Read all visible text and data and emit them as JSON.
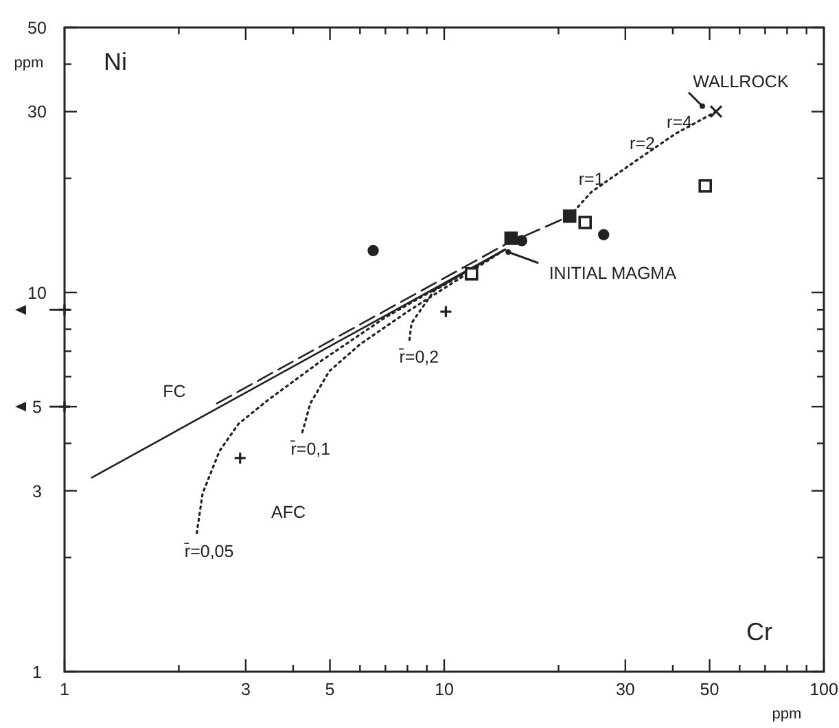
{
  "chart_data": {
    "type": "scatter",
    "xlabel": "ppm",
    "ylabel": "ppm",
    "log": "xy",
    "xlim": [
      1,
      100
    ],
    "ylim": [
      1,
      50
    ],
    "xticks": [
      1,
      {
        "value": 2,
        "label": null
      },
      3,
      {
        "value": 4,
        "label": null
      },
      5,
      {
        "value": 6,
        "label": null
      },
      {
        "value": 7,
        "label": null
      },
      {
        "value": 8,
        "label": null
      },
      {
        "value": 9,
        "label": null
      },
      10,
      {
        "value": 20,
        "label": null
      },
      30,
      {
        "value": 40,
        "label": null
      },
      50,
      {
        "value": 60,
        "label": null
      },
      {
        "value": 70,
        "label": null
      },
      {
        "value": 80,
        "label": null
      },
      {
        "value": 90,
        "label": null
      },
      100
    ],
    "yticks": [
      1,
      {
        "value": 2,
        "label": null
      },
      3,
      {
        "value": 4,
        "label": null
      },
      5,
      {
        "value": 6,
        "label": null
      },
      {
        "value": 7,
        "label": null
      },
      {
        "value": 8,
        "label": null
      },
      {
        "value": 9,
        "label": null
      },
      10,
      {
        "value": 20,
        "label": null
      },
      30,
      {
        "value": 40,
        "label": null
      },
      50
    ],
    "series": [
      {
        "type": "line",
        "color": "#222222",
        "line_style": "solid",
        "marker": "none",
        "x": [
          1.18,
          14.5
        ],
        "values": [
          3.25,
          13
        ]
      },
      {
        "type": "line",
        "color": "#222222",
        "line_style": "dashed",
        "marker": "none",
        "x": [
          2.52,
          14.5,
          21.4
        ],
        "values": [
          5.1,
          13.4,
          15.9
        ]
      },
      {
        "type": "line",
        "color": "#222222",
        "line_style": "dotted",
        "marker": "none",
        "x": [
          21.4,
          24.4,
          32.7,
          40.6,
          52
        ],
        "values": [
          15.9,
          18.4,
          22.6,
          26.2,
          30
        ]
      },
      {
        "type": "line",
        "color": "#222222",
        "line_style": "dotted",
        "marker": "none",
        "x": [
          2.23,
          2.31,
          2.56,
          2.87,
          3.43,
          4.74,
          7,
          14.5
        ],
        "values": [
          2.32,
          2.95,
          3.82,
          4.5,
          5.2,
          6.6,
          8.6,
          13
        ]
      },
      {
        "type": "line",
        "color": "#222222",
        "line_style": "dotted",
        "marker": "none",
        "x": [
          4.23,
          4.44,
          4.98,
          6,
          8,
          14.5
        ],
        "values": [
          4.28,
          5.1,
          6.2,
          7.3,
          8.9,
          13
        ]
      },
      {
        "type": "line",
        "color": "#222222",
        "line_style": "dotted",
        "marker": "none",
        "x": [
          8.1,
          8.2,
          9.4,
          14.5
        ],
        "values": [
          7.5,
          8.3,
          10.1,
          13
        ]
      },
      {
        "type": "scatter",
        "color": "#222222",
        "marker": "circle",
        "x": [
          6.5,
          16,
          26.3
        ],
        "values": [
          12.9,
          13.7,
          14.2
        ]
      },
      {
        "type": "scatter",
        "color": "#222222",
        "marker": "square",
        "x": [
          15,
          21.4
        ],
        "values": [
          13.9,
          15.9
        ]
      },
      {
        "type": "scatter",
        "color": "#ffffff",
        "marker": "square",
        "x": [
          11.8,
          23.5,
          48.7
        ],
        "values": [
          11.2,
          15.3,
          19.1
        ]
      },
      {
        "type": "scatter",
        "color": "#222222",
        "marker": "plus",
        "x": [
          10.1,
          2.9
        ],
        "values": [
          8.9,
          3.66
        ]
      },
      {
        "type": "scatter",
        "color": "#222222",
        "marker": "plus",
        "x": [
          1,
          1
        ],
        "values": [
          9,
          5
        ]
      },
      {
        "type": "scatter",
        "color": "#222222",
        "marker": "cross",
        "x": [
          52
        ],
        "values": [
          30
        ]
      }
    ],
    "annotations": [
      "Ni",
      "Cr",
      {
        "text": "WALLROCK",
        "x": 52,
        "y": 30
      },
      {
        "text": "INITIAL MAGMA",
        "x": 14.5,
        "y": 13
      },
      "FC",
      "AFC",
      {
        "text": "r̄=0,05",
        "x": 2.23,
        "y": 2.32
      },
      {
        "text": "r̄=0,1",
        "x": 4.23,
        "y": 4.28
      },
      {
        "text": "r̄=0,2",
        "x": 8.1,
        "y": 7.5
      },
      {
        "text": "r=1",
        "x": 24.4,
        "y": 18.4
      },
      {
        "text": "r=2",
        "x": 32.7,
        "y": 22.6
      },
      {
        "text": "r=4",
        "x": 40.6,
        "y": 26.2
      }
    ]
  }
}
